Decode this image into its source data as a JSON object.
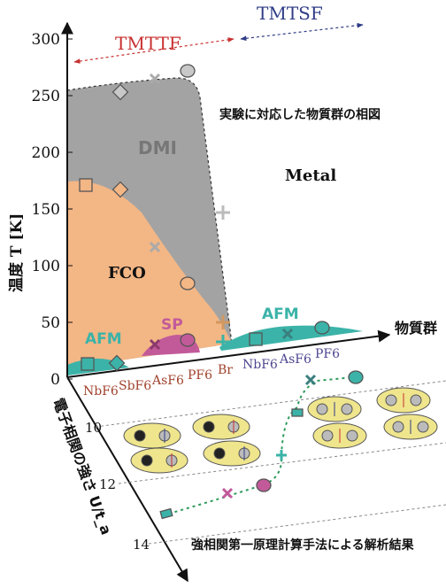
{
  "phase_diagram": {
    "y_axis_label": "温度 T [K]",
    "y_ticks": [
      "0",
      "50",
      "100",
      "150",
      "200",
      "250",
      "300"
    ],
    "x_axis_label": "物質群",
    "x_ticks_tmttf": [
      "NbF6",
      "SbF6",
      "AsF6",
      "PF6",
      "Br"
    ],
    "x_ticks_tmtsf": [
      "NbF6",
      "AsF6",
      "PF6"
    ],
    "family_left": "TMTTF",
    "family_right": "TMTSF",
    "caption": "実験に対応した物質群の相図",
    "phases": {
      "dmi": "DMI",
      "metal": "Metal",
      "fco": "FCO",
      "sp": "SP",
      "afm_left": "AFM",
      "afm_right": "AFM"
    },
    "colors": {
      "dmi": "#a3a3a3",
      "fco": "#f3b685",
      "sp": "#c25a9a",
      "afm": "#3bb3a8",
      "tmttf_label": "#c8302f",
      "tmtsf_label": "#2f3c86",
      "tick_left": "#a0422c",
      "tick_right": "#4e4790"
    }
  },
  "calc_panel": {
    "axis_label": "電子相関の強さ U/t_a",
    "ticks": [
      "10",
      "12",
      "14"
    ],
    "caption": "強相関第一原理計算手法による解析結果"
  }
}
